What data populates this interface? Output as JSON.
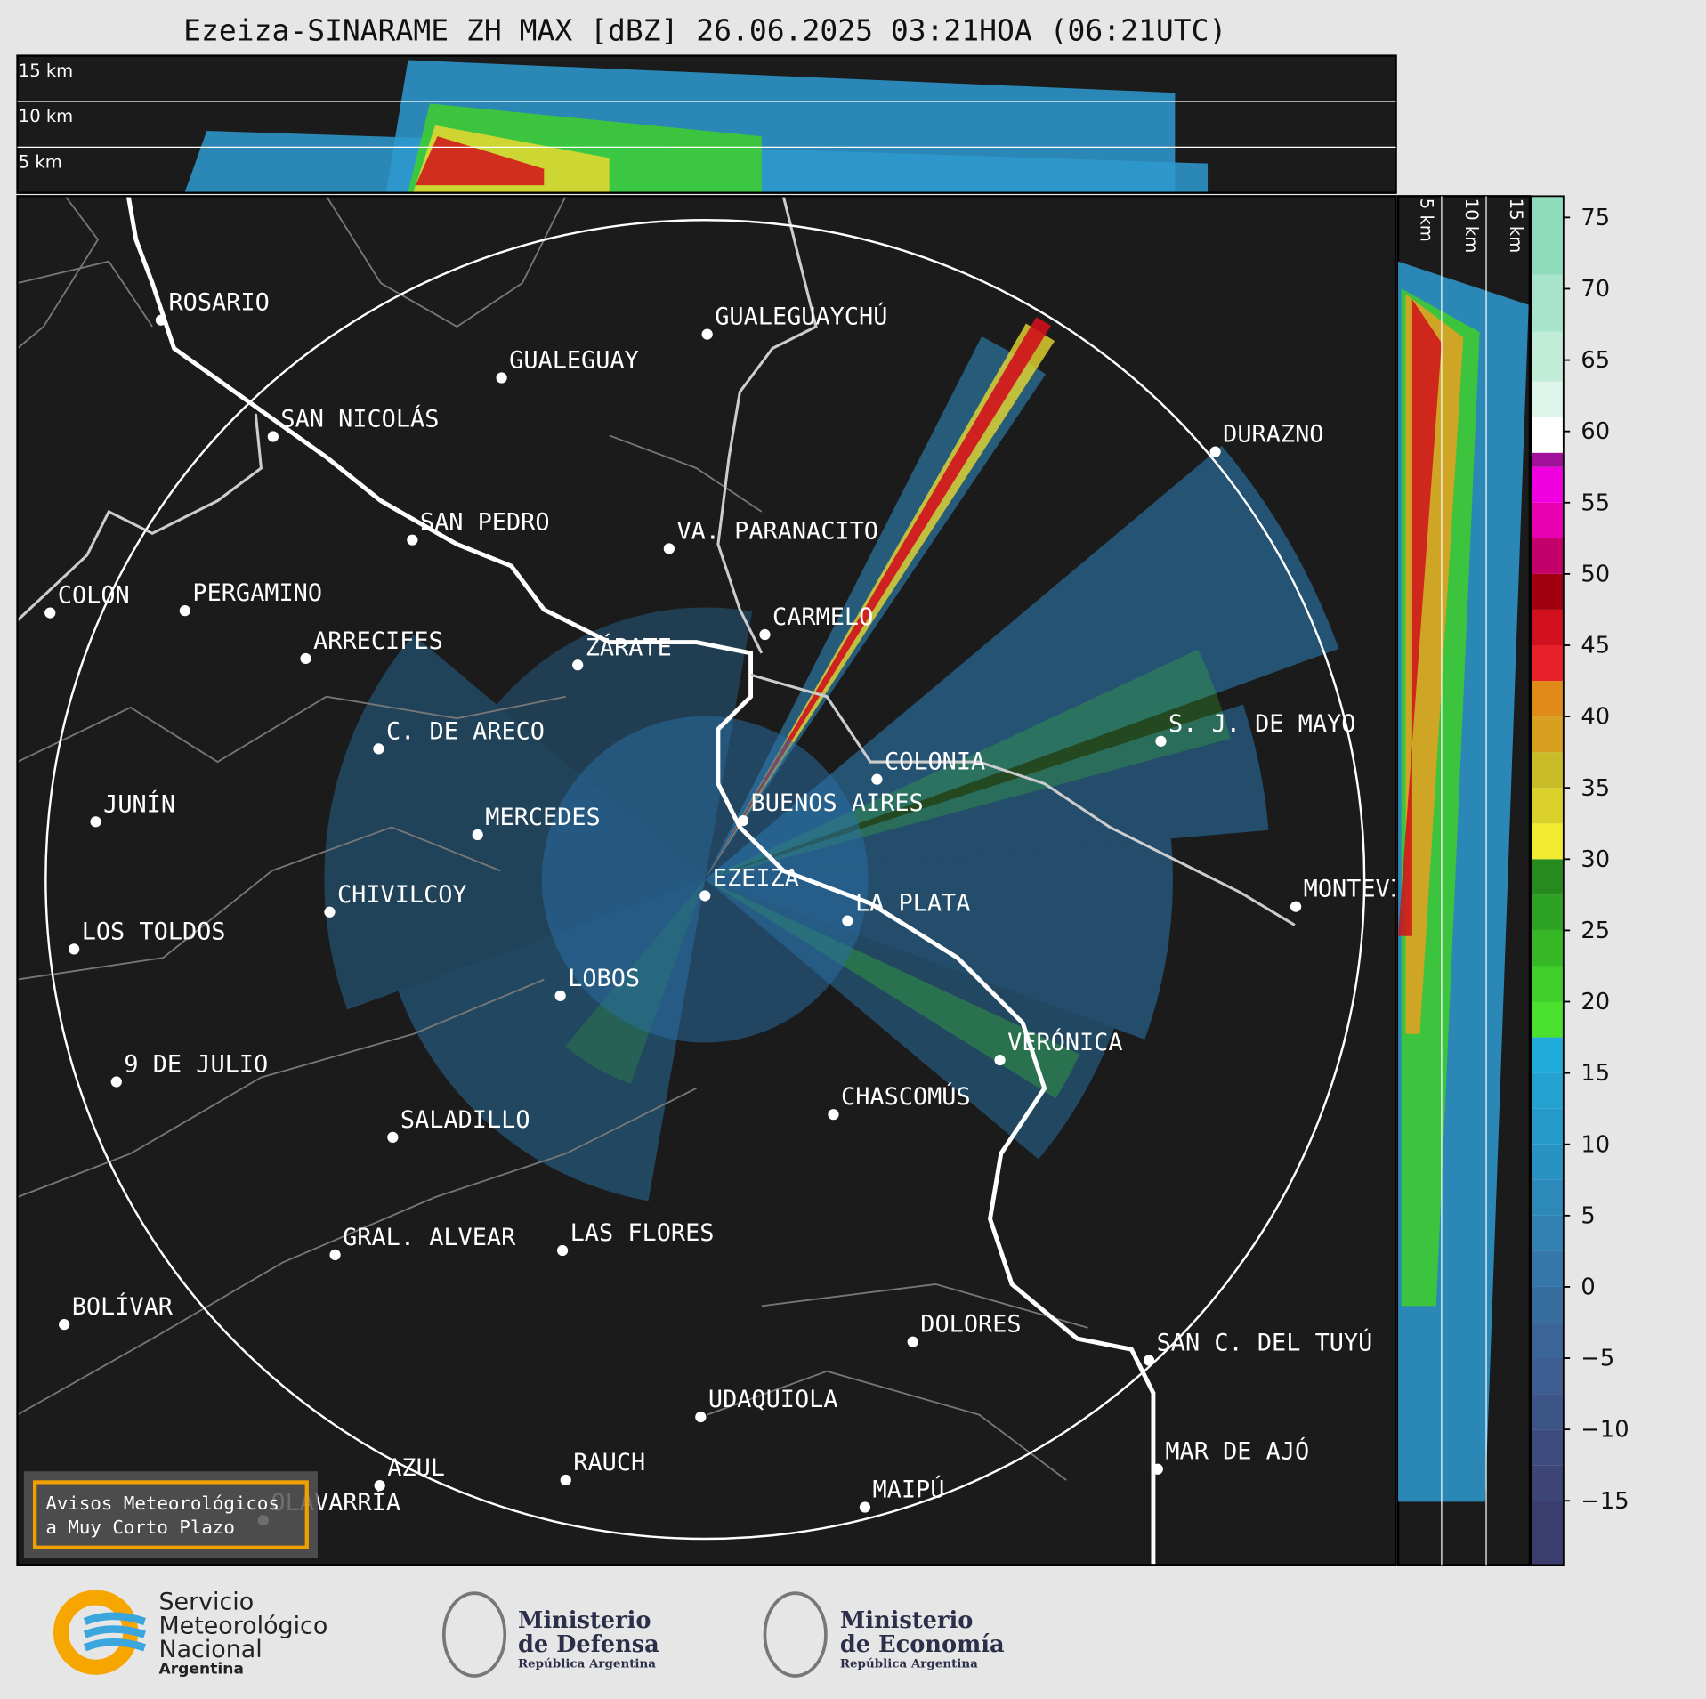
{
  "title": "Ezeiza-SINARAME ZH MAX [dBZ] 26.06.2025 03:21HOA (06:21UTC)",
  "top_panel": {
    "labels": [
      "15 km",
      "10 km",
      "5 km"
    ]
  },
  "side_panel": {
    "labels": [
      "5 km",
      "10 km",
      "15 km"
    ]
  },
  "cities": [
    "ROSARIO",
    "GUALEGUAYCHÚ",
    "GUALEGUAY",
    "SAN NICOLÁS",
    "DURAZNO",
    "SAN PEDRO",
    "VA. PARANACITO",
    "COLON",
    "PERGAMINO",
    "CARMELO",
    "ARRECIFES",
    "ZÁRATE",
    "S. J. DE MAYO",
    "C. DE ARECO",
    "COLONIA",
    "BUENOS AIRES",
    "JUNÍN",
    "MERCEDES",
    "EZEIZA",
    "MONTEVIDEO",
    "CHIVILCOY",
    "LA PLATA",
    "LOS TOLDOS",
    "LOBOS",
    "VERÓNICA",
    "9 DE JULIO",
    "CHASCOMÚS",
    "SALADILLO",
    "GRAL. ALVEAR",
    "LAS FLORES",
    "BOLÍVAR",
    "DOLORES",
    "SAN C. DEL TUYÚ",
    "UDAQUIOLA",
    "MAR DE AJÓ",
    "RAUCH",
    "AZUL",
    "OLAVARRÍA",
    "MAIPÚ"
  ],
  "warning_box": [
    "Avisos Meteorológicos",
    "a Muy Corto Plazo"
  ],
  "colorbar": {
    "lim": [
      -19.5,
      76.5
    ],
    "ticks": [
      {
        "value": -15,
        "label": "−15"
      },
      {
        "value": -10,
        "label": "−10"
      },
      {
        "value": -5,
        "label": "−5"
      },
      0,
      5,
      10,
      15,
      20,
      25,
      30,
      35,
      40,
      45,
      50,
      55,
      60,
      65,
      70,
      75
    ],
    "bands": [
      {
        "from": -19.5,
        "color": "#3b3d6e"
      },
      {
        "from": -15,
        "color": "#3c4576"
      },
      {
        "from": -12.5,
        "color": "#3d4c7e"
      },
      {
        "from": -10,
        "color": "#3d5487"
      },
      {
        "from": -7.5,
        "color": "#3d5c8f"
      },
      {
        "from": -5,
        "color": "#3b6597"
      },
      {
        "from": -2.5,
        "color": "#386e9f"
      },
      {
        "from": 0,
        "color": "#3477a8"
      },
      {
        "from": 2.5,
        "color": "#3080b1"
      },
      {
        "from": 5,
        "color": "#2c89b9"
      },
      {
        "from": 7.5,
        "color": "#2892c2"
      },
      {
        "from": 10,
        "color": "#2599c9"
      },
      {
        "from": 12.5,
        "color": "#23a2d1"
      },
      {
        "from": 15,
        "color": "#20abda"
      },
      {
        "from": 17.5,
        "color": "#4ae02e"
      },
      {
        "from": 20,
        "color": "#3fcf2a"
      },
      {
        "from": 22.5,
        "color": "#36b826"
      },
      {
        "from": 25,
        "color": "#2ea223"
      },
      {
        "from": 27.5,
        "color": "#268a1f"
      },
      {
        "from": 30,
        "color": "#f0ea30"
      },
      {
        "from": 32.5,
        "color": "#d9d02a"
      },
      {
        "from": 35,
        "color": "#c8bc28"
      },
      {
        "from": 37.5,
        "color": "#d9a020"
      },
      {
        "from": 40,
        "color": "#e08a18"
      },
      {
        "from": 42.5,
        "color": "#e8202a"
      },
      {
        "from": 45,
        "color": "#d0101c"
      },
      {
        "from": 47.5,
        "color": "#a00010"
      },
      {
        "from": 50,
        "color": "#c4006a"
      },
      {
        "from": 52.5,
        "color": "#e800b0"
      },
      {
        "from": 55,
        "color": "#f000e0"
      },
      {
        "from": 57.5,
        "color": "#a0109a"
      },
      {
        "from": 58.5,
        "color": "#ffffff"
      },
      {
        "from": 61,
        "color": "#dcf4ea"
      },
      {
        "from": 63.5,
        "color": "#c0ecd8"
      },
      {
        "from": 67,
        "color": "#a8e4cc"
      },
      {
        "from": 71,
        "color": "#8edcbc"
      }
    ]
  },
  "logos": {
    "smn": [
      "Servicio",
      "Meteorológico",
      "Nacional",
      "Argentina"
    ],
    "defensa": [
      "Ministerio",
      "de Defensa",
      "República Argentina"
    ],
    "economia": [
      "Ministerio",
      "de Economía",
      "República Argentina"
    ]
  }
}
